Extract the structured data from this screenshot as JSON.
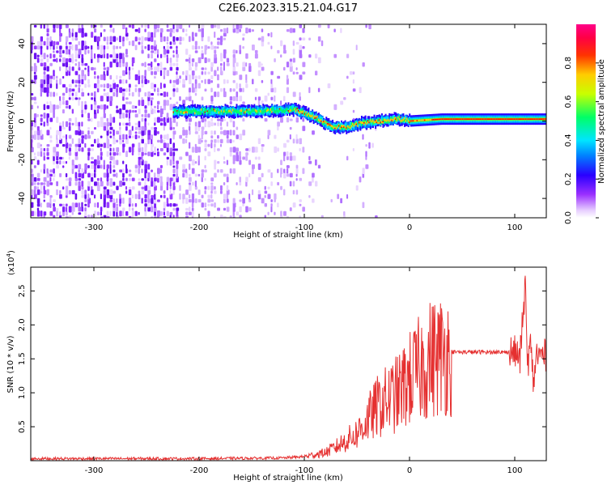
{
  "title": "C2E6.2023.315.21.04.G17",
  "spectrogram": {
    "ylabel": "Frequency (Hz)",
    "xlabel": "Height of straight line (km)",
    "colorbar_label": "Normalized spectral amplitude",
    "colorbar_ticks": [
      "0.0",
      "0.2",
      "0.4",
      "0.6",
      "0.8"
    ],
    "x_ticks": [
      "-300",
      "-200",
      "-100",
      "0",
      "100"
    ],
    "y_ticks": [
      "40",
      "20",
      "0",
      "-20",
      "-40"
    ]
  },
  "snr": {
    "ylabel": "SNR (10 * v/v)",
    "xlabel": "Height of straight line (km)",
    "scale_note": "(x10",
    "scale_exp": "4",
    "scale_close": ")",
    "x_ticks": [
      "-300",
      "-200",
      "-100",
      "0",
      "100"
    ],
    "y_ticks": [
      "2.5",
      "2.0",
      "1.5",
      "1.0",
      "0.5"
    ]
  },
  "colors": {
    "snr_line": "#e53030",
    "ridge": "#ff0000"
  },
  "chart_data": [
    {
      "type": "heatmap",
      "title": "C2E6.2023.315.21.04.G17",
      "xlabel": "Height of straight line (km)",
      "ylabel": "Frequency (Hz)",
      "xlim": [
        -360,
        130
      ],
      "ylim": [
        -50,
        50
      ],
      "colorbar": {
        "label": "Normalized spectral amplitude",
        "range": [
          0,
          1
        ]
      },
      "ridge": [
        {
          "x": -220,
          "y": 5
        },
        {
          "x": -150,
          "y": 5
        },
        {
          "x": -110,
          "y": 6
        },
        {
          "x": -90,
          "y": 2
        },
        {
          "x": -75,
          "y": -3
        },
        {
          "x": -60,
          "y": -3
        },
        {
          "x": -45,
          "y": -1
        },
        {
          "x": -30,
          "y": 0
        },
        {
          "x": -10,
          "y": 1
        },
        {
          "x": 0,
          "y": 0
        },
        {
          "x": 30,
          "y": 1
        },
        {
          "x": 80,
          "y": 1
        },
        {
          "x": 130,
          "y": 1
        }
      ],
      "grid": false
    },
    {
      "type": "line",
      "xlabel": "Height of straight line (km)",
      "ylabel": "SNR (10 * v/v)",
      "xlim": [
        -360,
        130
      ],
      "ylim": [
        0,
        28500
      ],
      "series": [
        {
          "x": [
            -360,
            -320,
            -280,
            -240,
            -200,
            -160,
            -120,
            -100,
            -80,
            -70,
            -60,
            -50,
            -40,
            -30,
            -20,
            -10,
            0,
            10,
            20,
            30,
            40,
            50,
            60,
            80,
            100,
            105,
            110,
            112,
            115,
            118,
            120,
            125,
            130
          ],
          "y": [
            300,
            300,
            300,
            300,
            300,
            350,
            400,
            600,
            1200,
            2000,
            3000,
            4000,
            6000,
            8000,
            9000,
            10000,
            12000,
            13500,
            15000,
            15500,
            16000,
            16000,
            16000,
            16000,
            16000,
            15000,
            26000,
            14000,
            17000,
            11000,
            15500,
            15500,
            15500
          ]
        }
      ],
      "grid": false
    }
  ]
}
